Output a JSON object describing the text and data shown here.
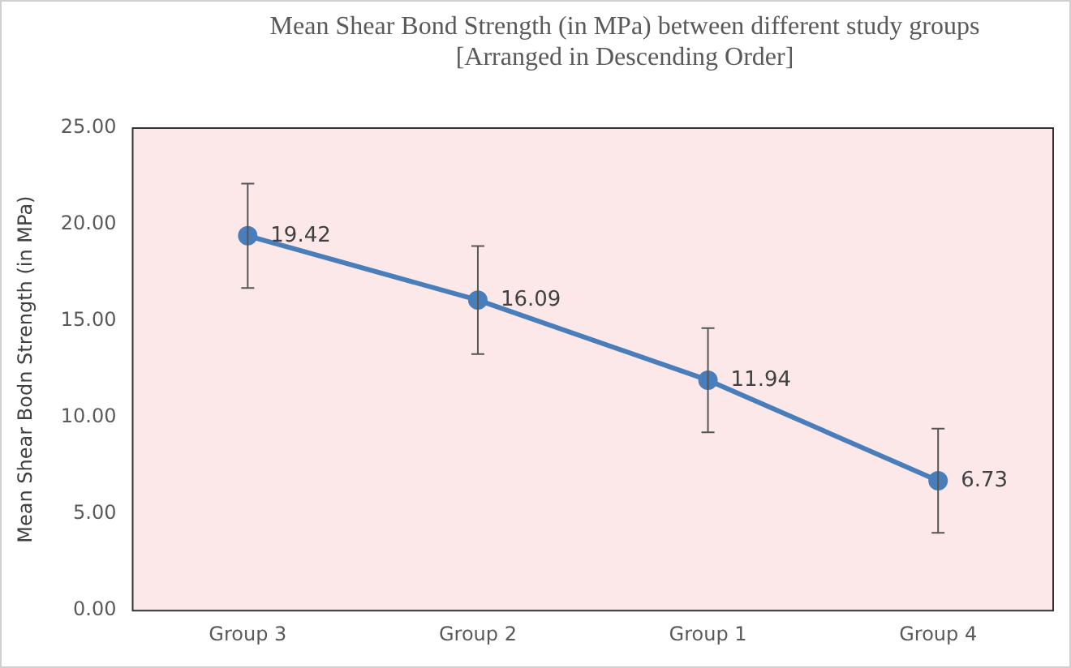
{
  "chart_data": {
    "type": "line",
    "title": "Mean Shear Bond Strength (in MPa) between different study groups",
    "subtitle": "[Arranged in Descending Order]",
    "ylabel": "Mean Shear Bodn Strength (in MPa)",
    "categories": [
      "Group 3",
      "Group 2",
      "Group 1",
      "Group 4"
    ],
    "series": [
      {
        "color": "#4a7ebb",
        "values": [
          19.42,
          16.09,
          11.94,
          6.73
        ],
        "errors": [
          2.7,
          2.8,
          2.7,
          2.7
        ]
      }
    ],
    "ylim": [
      0,
      25
    ],
    "yticks": [
      {
        "value": 0,
        "label": "0.00"
      },
      {
        "value": 5,
        "label": "5.00"
      },
      {
        "value": 10,
        "label": "10.00"
      },
      {
        "value": 15,
        "label": "15.00"
      },
      {
        "value": 20,
        "label": "20.00"
      },
      {
        "value": 25,
        "label": "25.00"
      }
    ],
    "grid": false,
    "legend": false,
    "marker": "circle",
    "line_style": "solid",
    "data_labels": true
  }
}
